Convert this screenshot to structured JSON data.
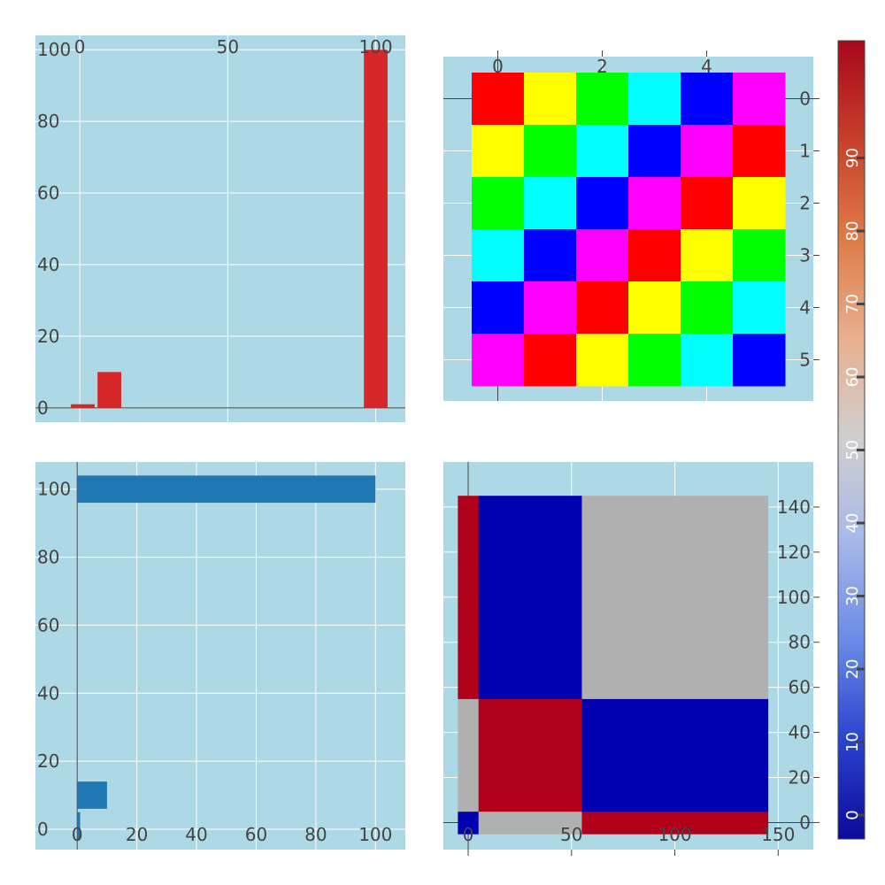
{
  "chart_data": [
    {
      "type": "bar",
      "orientation": "vertical",
      "x": [
        1,
        10,
        100
      ],
      "values": [
        1,
        10,
        100
      ],
      "xaxis": {
        "range": [
          -15,
          110
        ],
        "side": "top",
        "ticks": [
          0,
          50,
          100
        ]
      },
      "yaxis": {
        "range": [
          -4,
          104
        ],
        "side": "left",
        "ticks": [
          0,
          20,
          40,
          60,
          80,
          100
        ]
      },
      "bar_width": 8,
      "color": "#d62728",
      "background": "#add8e6",
      "grid": true
    },
    {
      "type": "heatmap",
      "rows": [
        [
          "#ff0000",
          "#ffff00",
          "#00ff00",
          "#00ffff",
          "#0000ff",
          "#ff00ff"
        ],
        [
          "#ffff00",
          "#00ff00",
          "#00ffff",
          "#0000ff",
          "#ff00ff",
          "#ff0000"
        ],
        [
          "#00ff00",
          "#00ffff",
          "#0000ff",
          "#ff00ff",
          "#ff0000",
          "#ffff00"
        ],
        [
          "#00ffff",
          "#0000ff",
          "#ff00ff",
          "#ff0000",
          "#ffff00",
          "#00ff00"
        ],
        [
          "#0000ff",
          "#ff00ff",
          "#ff0000",
          "#ffff00",
          "#00ff00",
          "#00ffff"
        ],
        [
          "#ff00ff",
          "#ff0000",
          "#ffff00",
          "#00ff00",
          "#00ffff",
          "#0000ff"
        ]
      ],
      "xaxis": {
        "range": [
          -0.5,
          5.5
        ],
        "side": "top",
        "ticks": [
          0,
          2,
          4
        ]
      },
      "yaxis": {
        "range": [
          -0.5,
          5.5
        ],
        "side": "right",
        "reversed": true,
        "ticks": [
          0,
          1,
          2,
          3,
          4,
          5
        ]
      },
      "background": "#add8e6",
      "grid": true
    },
    {
      "type": "bar",
      "orientation": "horizontal",
      "y": [
        1,
        10,
        100
      ],
      "values": [
        1,
        10,
        100
      ],
      "xaxis": {
        "range": [
          -14,
          110
        ],
        "side": "bottom",
        "ticks": [
          0,
          20,
          40,
          60,
          80,
          100
        ]
      },
      "yaxis": {
        "range": [
          -6,
          108
        ],
        "side": "left",
        "ticks": [
          0,
          20,
          40,
          60,
          80,
          100
        ]
      },
      "bar_height": 8,
      "color": "#1f77b4",
      "background": "#add8e6",
      "grid": true
    },
    {
      "type": "heatmap",
      "x_edges": [
        -5,
        5,
        55,
        145
      ],
      "y_edges": [
        -5,
        5,
        55,
        145
      ],
      "z": [
        [
          0,
          50,
          100
        ],
        [
          50,
          100,
          0
        ],
        [
          100,
          0,
          50
        ]
      ],
      "colorscale": [
        "#0000b0",
        "#b0b0b0",
        "#b0001a"
      ],
      "zrange": [
        0,
        100
      ],
      "xaxis": {
        "range": [
          -12,
          167
        ],
        "side": "bottom",
        "ticks": [
          0,
          50,
          100,
          150
        ]
      },
      "yaxis": {
        "range": [
          -12,
          160
        ],
        "side": "right",
        "ticks": [
          0,
          20,
          40,
          60,
          80,
          100,
          120,
          140
        ]
      },
      "background": "#add8e6",
      "grid": true
    }
  ],
  "colorbar": {
    "range": [
      0,
      100
    ],
    "ticks": [
      0,
      10,
      20,
      30,
      40,
      50,
      60,
      70,
      80,
      90
    ],
    "colors": [
      "#0a0a9a",
      "#2a44d0",
      "#6a8ce8",
      "#a8b8e8",
      "#cfcfcf",
      "#e8b090",
      "#e07c48",
      "#c8402a",
      "#a8071a"
    ]
  }
}
